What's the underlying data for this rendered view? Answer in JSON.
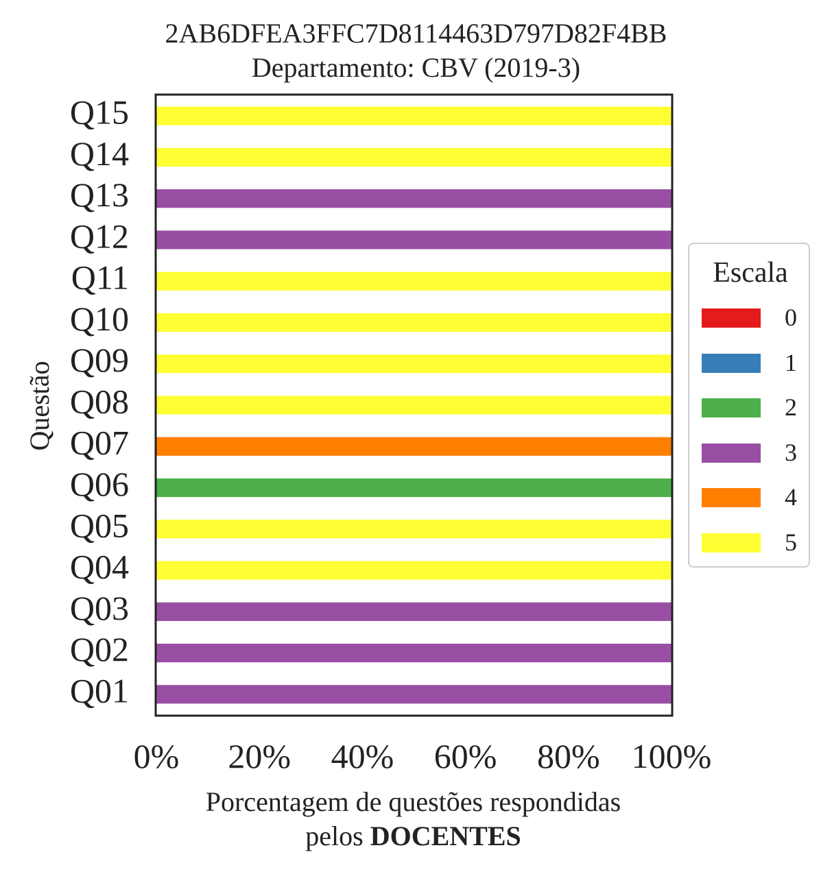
{
  "chart_data": {
    "type": "bar",
    "orientation": "horizontal",
    "stacked": true,
    "title": [
      "2AB6DFEA3FFC7D8114463D797D82F4BB",
      "Departamento: CBV (2019-3)"
    ],
    "ylabel": "Questão",
    "xlabel_line1": "Porcentagem de questões respondidas",
    "xlabel_line2_prefix": "pelos ",
    "xlabel_line2_bold": "DOCENTES",
    "categories": [
      "Q01",
      "Q02",
      "Q03",
      "Q04",
      "Q05",
      "Q06",
      "Q07",
      "Q08",
      "Q09",
      "Q10",
      "Q11",
      "Q12",
      "Q13",
      "Q14",
      "Q15"
    ],
    "xlim": [
      0,
      100
    ],
    "xticks": [
      0,
      20,
      40,
      60,
      80,
      100
    ],
    "xtick_labels": [
      "0%",
      "20%",
      "40%",
      "60%",
      "80%",
      "100%"
    ],
    "legend": {
      "title": "Escala",
      "placement": "right",
      "entries": [
        {
          "label": "0",
          "color": "#e41a1c"
        },
        {
          "label": "1",
          "color": "#377eb8"
        },
        {
          "label": "2",
          "color": "#4daf4a"
        },
        {
          "label": "3",
          "color": "#984ea3"
        },
        {
          "label": "4",
          "color": "#ff7f00"
        },
        {
          "label": "5",
          "color": "#ffff33"
        }
      ]
    },
    "series": [
      {
        "name": "0",
        "values": [
          0,
          0,
          0,
          0,
          0,
          0,
          0,
          0,
          0,
          0,
          0,
          0,
          0,
          0,
          0
        ]
      },
      {
        "name": "1",
        "values": [
          0,
          0,
          0,
          0,
          0,
          0,
          0,
          0,
          0,
          0,
          0,
          0,
          0,
          0,
          0
        ]
      },
      {
        "name": "2",
        "values": [
          0,
          0,
          0,
          0,
          0,
          100,
          0,
          0,
          0,
          0,
          0,
          0,
          0,
          0,
          0
        ]
      },
      {
        "name": "3",
        "values": [
          100,
          100,
          100,
          0,
          0,
          0,
          0,
          0,
          0,
          0,
          0,
          100,
          100,
          0,
          0
        ]
      },
      {
        "name": "4",
        "values": [
          0,
          0,
          0,
          0,
          0,
          0,
          100,
          0,
          0,
          0,
          0,
          0,
          0,
          0,
          0
        ]
      },
      {
        "name": "5",
        "values": [
          0,
          0,
          0,
          100,
          100,
          0,
          0,
          100,
          100,
          100,
          100,
          0,
          0,
          100,
          100
        ]
      }
    ]
  }
}
